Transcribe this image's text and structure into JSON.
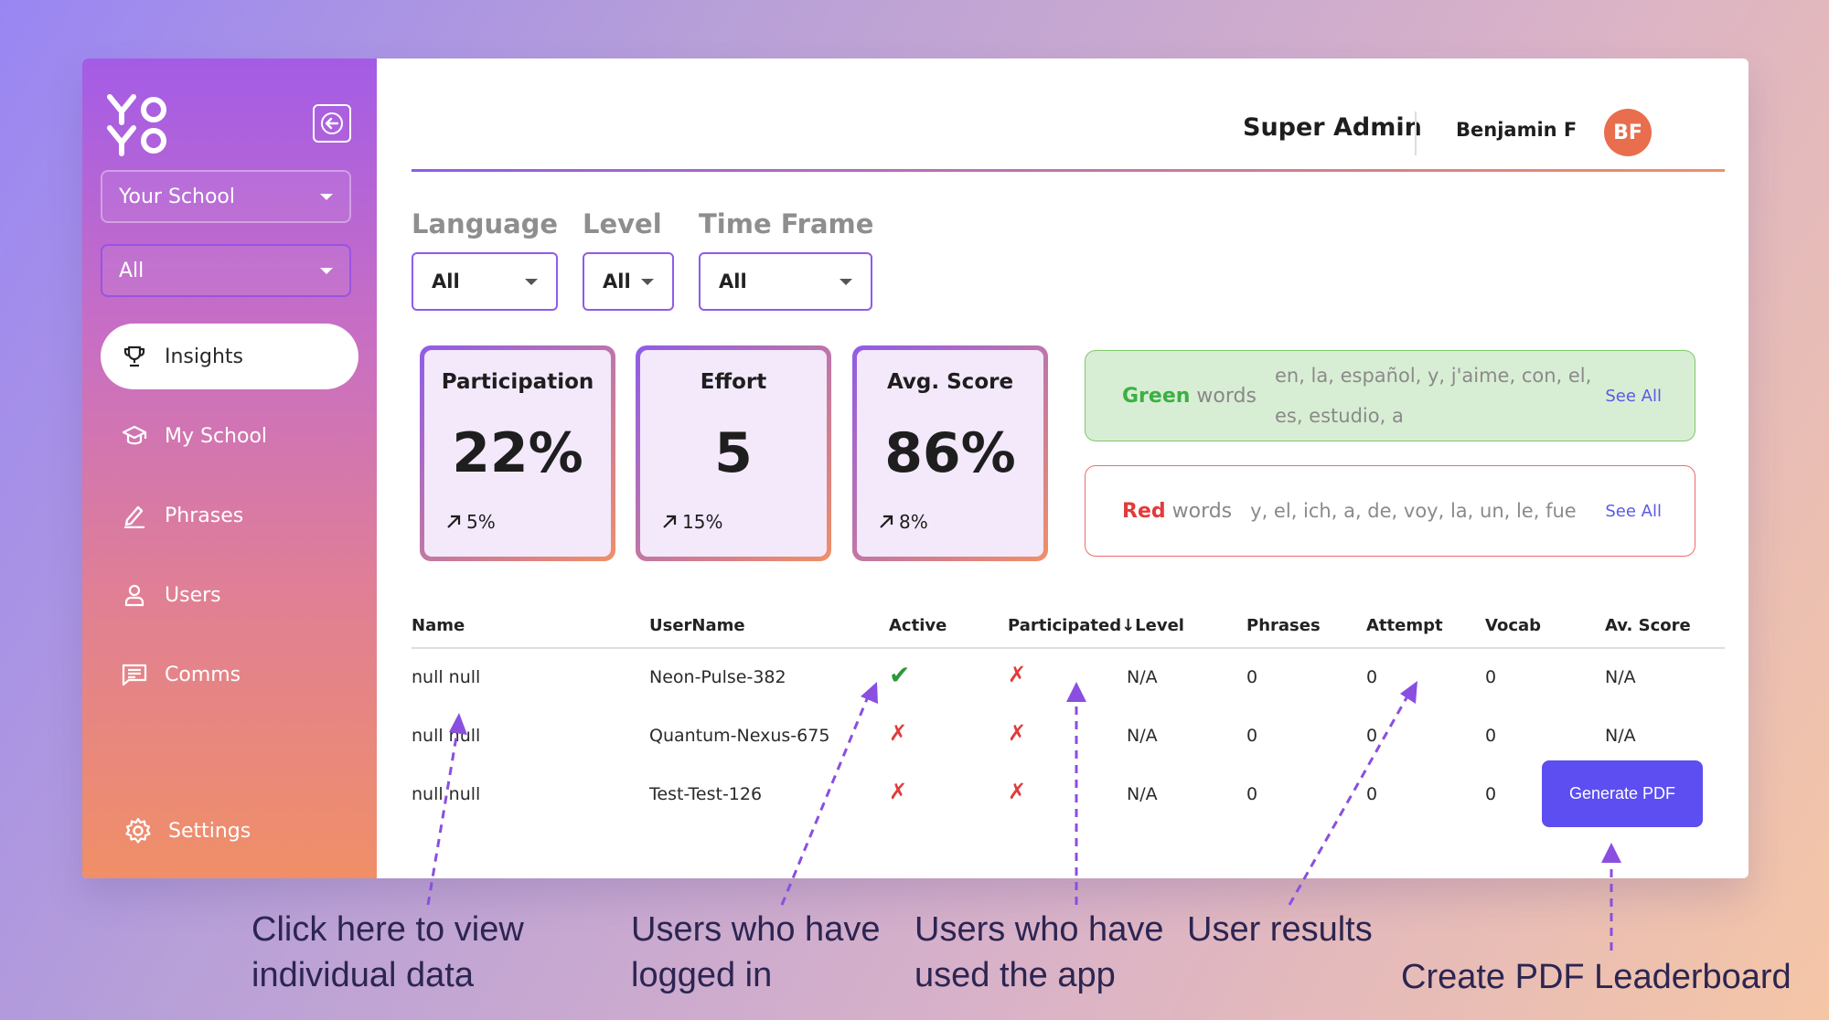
{
  "sidebar": {
    "logo_text": "YOYO",
    "school_select": "Your School",
    "class_select": "All",
    "nav": [
      {
        "label": "Insights",
        "icon": "trophy-icon",
        "active": true
      },
      {
        "label": "My School",
        "icon": "graduation-cap-icon",
        "active": false
      },
      {
        "label": "Phrases",
        "icon": "pencil-icon",
        "active": false
      },
      {
        "label": "Users",
        "icon": "user-icon",
        "active": false
      },
      {
        "label": "Comms",
        "icon": "message-icon",
        "active": false
      }
    ],
    "settings_label": "Settings"
  },
  "header": {
    "role": "Super Admin",
    "user_name": "Benjamin F",
    "avatar_initials": "BF"
  },
  "filters": {
    "language": {
      "label": "Language",
      "value": "All"
    },
    "level": {
      "label": "Level",
      "value": "All"
    },
    "timeframe": {
      "label": "Time Frame",
      "value": "All"
    }
  },
  "stats": [
    {
      "title": "Participation",
      "value": "22%",
      "trend": "5%"
    },
    {
      "title": "Effort",
      "value": "5",
      "trend": "15%"
    },
    {
      "title": "Avg. Score",
      "value": "86%",
      "trend": "8%"
    }
  ],
  "words": {
    "green": {
      "label_color": "Green",
      "label_rest": "words",
      "list": "en, la, español, y, j'aime, con, el, es, estudio, a",
      "see_all": "See All"
    },
    "red": {
      "label_color": "Red",
      "label_rest": "words",
      "list": "y, el, ich, a, de, voy, la, un, le, fue",
      "see_all": "See All"
    }
  },
  "table": {
    "headers": [
      "Name",
      "UserName",
      "Active",
      "Participated↓Level",
      "Phrases",
      "Attempt",
      "Vocab",
      "Av. Score"
    ],
    "rows": [
      {
        "name": "null null",
        "username": "Neon-Pulse-382",
        "active": true,
        "participated": false,
        "level": "N/A",
        "phrases": "0",
        "attempt": "0",
        "vocab": "0",
        "score": "N/A"
      },
      {
        "name": "null null",
        "username": "Quantum-Nexus-675",
        "active": false,
        "participated": false,
        "level": "N/A",
        "phrases": "0",
        "attempt": "0",
        "vocab": "0",
        "score": "N/A"
      },
      {
        "name": "null null",
        "username": "Test-Test-126",
        "active": false,
        "participated": false,
        "level": "N/A",
        "phrases": "0",
        "attempt": "0",
        "vocab": "0",
        "score": ""
      }
    ],
    "check_glyph": "✔",
    "cross_glyph": "✗"
  },
  "generate_pdf_label": "Generate PDF",
  "captions": {
    "c1_l1": "Click here to view",
    "c1_l2": "individual data",
    "c2_l1": "Users who have",
    "c2_l2": "logged in",
    "c3_l1": "Users who have",
    "c3_l2": "used the app",
    "c4_l1": "User results",
    "c5_l1": "Create PDF Leaderboard"
  },
  "colors": {
    "accent": "#8f5ce8",
    "pdf_button": "#5c4ef1",
    "check": "#2a9a3a",
    "cross": "#e23b3b"
  }
}
